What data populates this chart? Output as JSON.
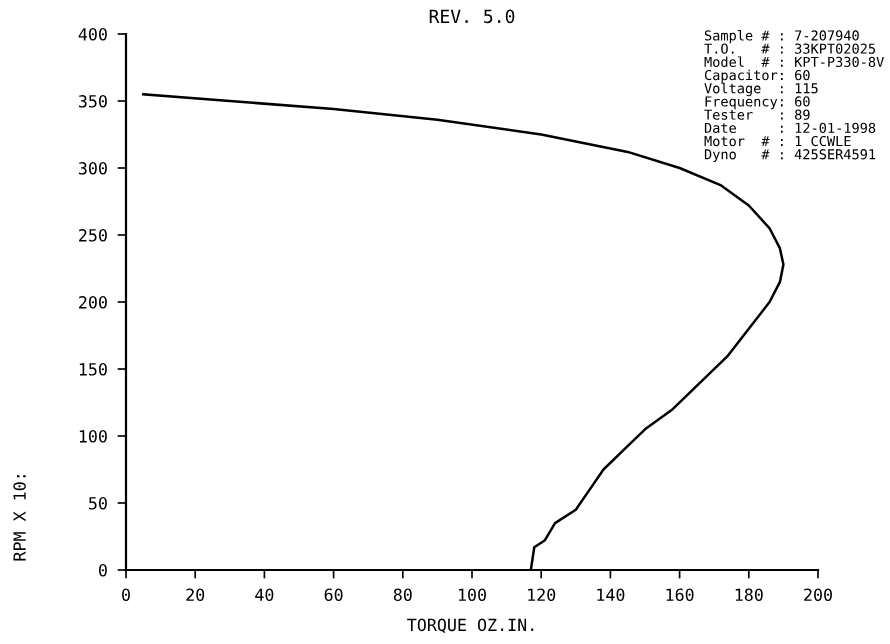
{
  "chart_data": {
    "type": "line",
    "title": "REV. 5.0",
    "xlabel": "TORQUE OZ.IN.",
    "ylabel": "RPM X 10:",
    "xlim": [
      0,
      200
    ],
    "xticks": [
      0,
      20,
      40,
      60,
      80,
      100,
      120,
      140,
      160,
      180,
      200
    ],
    "ylim": [
      0,
      400
    ],
    "yticks": [
      0,
      50,
      100,
      150,
      200,
      250,
      300,
      350,
      400
    ],
    "grid": false,
    "marker": "none",
    "line_style": "solid",
    "series": [
      {
        "color": "#000000",
        "x": [
          5,
          30,
          60,
          90,
          120,
          145,
          160,
          172,
          180,
          186,
          189,
          190,
          189,
          186,
          180,
          174,
          166,
          158,
          150,
          144,
          138,
          134,
          130,
          124,
          121,
          118,
          117
        ],
        "values": [
          355,
          350,
          344,
          336,
          325,
          312,
          300,
          287,
          272,
          255,
          240,
          228,
          215,
          200,
          180,
          160,
          140,
          120,
          105,
          90,
          75,
          60,
          45,
          35,
          22,
          17,
          0
        ]
      }
    ],
    "annotations": [
      "Sample # : 7-207940",
      "T.O.   # : 33KPT02025",
      "Model  # : KPT-P330-8V",
      "Capacitor: 60",
      "Voltage  : 115",
      "Frequency: 60",
      "Tester   : 89",
      "Date     : 12-01-1998",
      "Motor  # : 1 CCWLE",
      "Dyno   # : 425SER4591"
    ]
  }
}
